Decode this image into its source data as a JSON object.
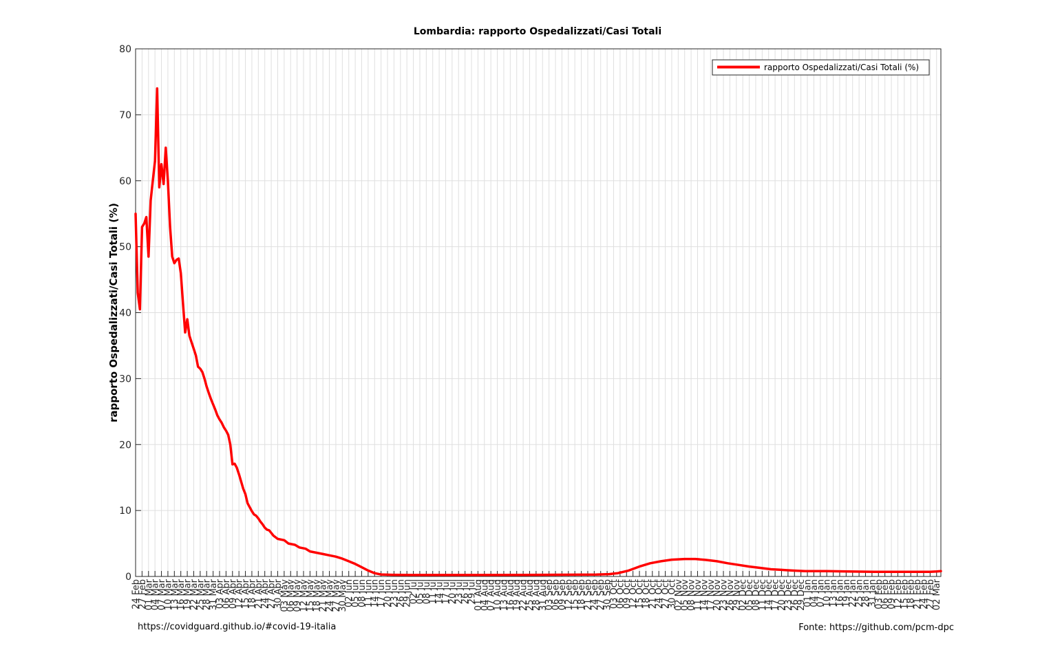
{
  "footer": {
    "left": "https://covidguard.github.io/#covid-19-italia",
    "right": "Fonte: https://github.com/pcm-dpc"
  },
  "chart_data": {
    "type": "line",
    "title": "Lombardia: rapporto Ospedalizzati/Casi Totali",
    "xlabel": "",
    "ylabel": "rapporto Ospedalizzati/Casi Totali (%)",
    "ylim": [
      0,
      80
    ],
    "yticks": [
      0,
      10,
      20,
      30,
      40,
      50,
      60,
      70,
      80
    ],
    "grid": true,
    "legend_position": "top-right",
    "x_start_date": "2020-02-24",
    "x_end_date": "2021-03-04",
    "xtick_labels": [
      "24 Feb",
      "27 Feb",
      "01 Mar",
      "04 Mar",
      "07 Mar",
      "10 Mar",
      "13 Mar",
      "16 Mar",
      "19 Mar",
      "22 Mar",
      "25 Mar",
      "28 Mar",
      "31 Mar",
      "03 Apr",
      "06 Apr",
      "09 Apr",
      "12 Apr",
      "15 Apr",
      "18 Apr",
      "21 Apr",
      "24 Apr",
      "27 Apr",
      "30 Apr",
      "03 May",
      "06 May",
      "09 May",
      "12 May",
      "15 May",
      "18 May",
      "21 May",
      "24 May",
      "27 May",
      "30 May",
      "02 Jun",
      "05 Jun",
      "08 Jun",
      "11 Jun",
      "14 Jun",
      "17 Jun",
      "20 Jun",
      "23 Jun",
      "26 Jun",
      "29 Jun",
      "02 Jul",
      "05 Jul",
      "08 Jul",
      "11 Jul",
      "14 Jul",
      "17 Jul",
      "20 Jul",
      "23 Jul",
      "26 Jul",
      "29 Jul",
      "01 Aug",
      "04 Aug",
      "07 Aug",
      "10 Aug",
      "13 Aug",
      "16 Aug",
      "19 Aug",
      "22 Aug",
      "25 Aug",
      "28 Aug",
      "31 Aug",
      "03 Sep",
      "06 Sep",
      "09 Sep",
      "12 Sep",
      "15 Sep",
      "18 Sep",
      "21 Sep",
      "24 Sep",
      "27 Sep",
      "30 Sep",
      "03 Oct",
      "06 Oct",
      "09 Oct",
      "12 Oct",
      "15 Oct",
      "18 Oct",
      "21 Oct",
      "24 Oct",
      "27 Oct",
      "30 Oct",
      "02 Nov",
      "05 Nov",
      "08 Nov",
      "11 Nov",
      "14 Nov",
      "17 Nov",
      "20 Nov",
      "23 Nov",
      "26 Nov",
      "29 Nov",
      "02 Dec",
      "05 Dec",
      "08 Dec",
      "11 Dec",
      "14 Dec",
      "17 Dec",
      "20 Dec",
      "23 Dec",
      "26 Dec",
      "29 Dec",
      "01 Jan",
      "04 Jan",
      "07 Jan",
      "10 Jan",
      "13 Jan",
      "16 Jan",
      "19 Jan",
      "22 Jan",
      "25 Jan",
      "28 Jan",
      "31 Jan",
      "03 Feb",
      "06 Feb",
      "09 Feb",
      "12 Feb",
      "15 Feb",
      "18 Feb",
      "21 Feb",
      "24 Feb",
      "27 Feb",
      "02 Mar"
    ],
    "series": [
      {
        "name": "rapporto Ospedalizzati/Casi Totali (%)",
        "color": "#ff0000",
        "points": [
          [
            "2020-02-24",
            55.0
          ],
          [
            "2020-02-25",
            43.0
          ],
          [
            "2020-02-26",
            40.5
          ],
          [
            "2020-02-27",
            53.0
          ],
          [
            "2020-02-28",
            53.5
          ],
          [
            "2020-02-29",
            54.5
          ],
          [
            "2020-03-01",
            48.5
          ],
          [
            "2020-03-02",
            57.0
          ],
          [
            "2020-03-03",
            60.0
          ],
          [
            "2020-03-04",
            63.0
          ],
          [
            "2020-03-05",
            74.0
          ],
          [
            "2020-03-06",
            59.0
          ],
          [
            "2020-03-07",
            62.5
          ],
          [
            "2020-03-08",
            59.5
          ],
          [
            "2020-03-09",
            65.0
          ],
          [
            "2020-03-10",
            60.0
          ],
          [
            "2020-03-11",
            53.0
          ],
          [
            "2020-03-12",
            48.5
          ],
          [
            "2020-03-13",
            47.5
          ],
          [
            "2020-03-14",
            48.0
          ],
          [
            "2020-03-15",
            48.2
          ],
          [
            "2020-03-16",
            46.0
          ],
          [
            "2020-03-17",
            41.5
          ],
          [
            "2020-03-18",
            37.0
          ],
          [
            "2020-03-19",
            39.0
          ],
          [
            "2020-03-20",
            36.5
          ],
          [
            "2020-03-21",
            35.5
          ],
          [
            "2020-03-22",
            34.5
          ],
          [
            "2020-03-23",
            33.5
          ],
          [
            "2020-03-24",
            31.8
          ],
          [
            "2020-03-25",
            31.5
          ],
          [
            "2020-03-26",
            31.0
          ],
          [
            "2020-03-27",
            30.0
          ],
          [
            "2020-03-28",
            28.8
          ],
          [
            "2020-03-29",
            27.8
          ],
          [
            "2020-03-30",
            26.9
          ],
          [
            "2020-03-31",
            26.1
          ],
          [
            "2020-04-01",
            25.3
          ],
          [
            "2020-04-02",
            24.4
          ],
          [
            "2020-04-03",
            23.8
          ],
          [
            "2020-04-04",
            23.3
          ],
          [
            "2020-04-05",
            22.6
          ],
          [
            "2020-04-06",
            22.1
          ],
          [
            "2020-04-07",
            21.5
          ],
          [
            "2020-04-08",
            20.0
          ],
          [
            "2020-04-09",
            17.0
          ],
          [
            "2020-04-10",
            17.1
          ],
          [
            "2020-04-11",
            16.5
          ],
          [
            "2020-04-12",
            15.5
          ],
          [
            "2020-04-13",
            14.4
          ],
          [
            "2020-04-14",
            13.3
          ],
          [
            "2020-04-15",
            12.5
          ],
          [
            "2020-04-16",
            11.1
          ],
          [
            "2020-04-17",
            10.5
          ],
          [
            "2020-04-18",
            9.9
          ],
          [
            "2020-04-19",
            9.4
          ],
          [
            "2020-04-20",
            9.2
          ],
          [
            "2020-04-21",
            8.8
          ],
          [
            "2020-04-22",
            8.3
          ],
          [
            "2020-04-23",
            7.9
          ],
          [
            "2020-04-24",
            7.4
          ],
          [
            "2020-04-25",
            7.1
          ],
          [
            "2020-04-26",
            7.0
          ],
          [
            "2020-04-27",
            6.6
          ],
          [
            "2020-04-28",
            6.2
          ],
          [
            "2020-04-30",
            5.7
          ],
          [
            "2020-05-03",
            5.5
          ],
          [
            "2020-05-05",
            5.0
          ],
          [
            "2020-05-08",
            4.8
          ],
          [
            "2020-05-10",
            4.4
          ],
          [
            "2020-05-13",
            4.2
          ],
          [
            "2020-05-15",
            3.8
          ],
          [
            "2020-05-18",
            3.6
          ],
          [
            "2020-05-21",
            3.4
          ],
          [
            "2020-05-24",
            3.2
          ],
          [
            "2020-05-27",
            3.0
          ],
          [
            "2020-05-30",
            2.7
          ],
          [
            "2020-06-02",
            2.3
          ],
          [
            "2020-06-05",
            1.9
          ],
          [
            "2020-06-08",
            1.4
          ],
          [
            "2020-06-11",
            0.9
          ],
          [
            "2020-06-14",
            0.5
          ],
          [
            "2020-06-17",
            0.3
          ],
          [
            "2020-06-22",
            0.25
          ],
          [
            "2020-07-01",
            0.22
          ],
          [
            "2020-08-01",
            0.22
          ],
          [
            "2020-09-01",
            0.25
          ],
          [
            "2020-09-25",
            0.28
          ],
          [
            "2020-10-01",
            0.35
          ],
          [
            "2020-10-05",
            0.5
          ],
          [
            "2020-10-10",
            0.9
          ],
          [
            "2020-10-15",
            1.5
          ],
          [
            "2020-10-20",
            2.0
          ],
          [
            "2020-10-25",
            2.3
          ],
          [
            "2020-10-30",
            2.55
          ],
          [
            "2020-11-05",
            2.65
          ],
          [
            "2020-11-10",
            2.65
          ],
          [
            "2020-11-15",
            2.5
          ],
          [
            "2020-11-20",
            2.3
          ],
          [
            "2020-11-25",
            2.0
          ],
          [
            "2020-11-30",
            1.75
          ],
          [
            "2020-12-05",
            1.5
          ],
          [
            "2020-12-10",
            1.3
          ],
          [
            "2020-12-15",
            1.1
          ],
          [
            "2020-12-20",
            1.0
          ],
          [
            "2020-12-25",
            0.9
          ],
          [
            "2020-12-31",
            0.8
          ],
          [
            "2021-01-10",
            0.8
          ],
          [
            "2021-01-20",
            0.75
          ],
          [
            "2021-02-01",
            0.7
          ],
          [
            "2021-02-15",
            0.7
          ],
          [
            "2021-02-27",
            0.7
          ],
          [
            "2021-03-02",
            0.75
          ],
          [
            "2021-03-04",
            0.8
          ]
        ]
      }
    ]
  }
}
